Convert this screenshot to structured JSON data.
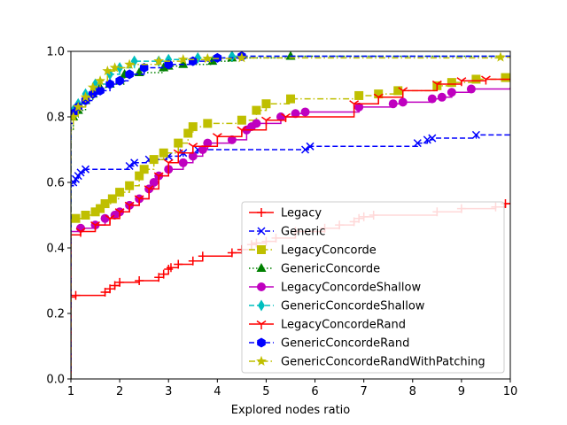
{
  "chart_data": {
    "type": "line",
    "title": "",
    "xlabel": "Explored nodes ratio",
    "ylabel": "",
    "xlim": [
      1,
      10
    ],
    "ylim": [
      0,
      1
    ],
    "xticks": [
      1,
      2,
      3,
      4,
      5,
      6,
      7,
      8,
      9,
      10
    ],
    "yticks": [
      0.0,
      0.2,
      0.4,
      0.6,
      0.8,
      1.0
    ],
    "xtick_labels": [
      "1",
      "2",
      "3",
      "4",
      "5",
      "6",
      "7",
      "8",
      "9",
      "10"
    ],
    "ytick_labels": [
      "0.0",
      "0.2",
      "0.4",
      "0.6",
      "0.8",
      "1.0"
    ],
    "legend_position": "lower-right",
    "series": [
      {
        "name": "Legacy",
        "color": "#ff0000",
        "dash": "solid",
        "marker": "plus",
        "start_y": 0.25,
        "points": [
          [
            1.1,
            0.255
          ],
          [
            1.7,
            0.265
          ],
          [
            1.8,
            0.275
          ],
          [
            1.9,
            0.285
          ],
          [
            2.0,
            0.295
          ],
          [
            2.4,
            0.3
          ],
          [
            2.8,
            0.31
          ],
          [
            2.9,
            0.32
          ],
          [
            3.0,
            0.335
          ],
          [
            3.05,
            0.34
          ],
          [
            3.2,
            0.35
          ],
          [
            3.5,
            0.36
          ],
          [
            3.7,
            0.375
          ],
          [
            4.3,
            0.385
          ],
          [
            4.5,
            0.395
          ],
          [
            4.7,
            0.41
          ],
          [
            4.8,
            0.415
          ],
          [
            5.0,
            0.42
          ],
          [
            5.2,
            0.43
          ],
          [
            5.6,
            0.45
          ],
          [
            6.2,
            0.46
          ],
          [
            6.5,
            0.47
          ],
          [
            6.8,
            0.48
          ],
          [
            6.9,
            0.49
          ],
          [
            7.0,
            0.495
          ],
          [
            7.2,
            0.5
          ],
          [
            8.5,
            0.51
          ],
          [
            9.0,
            0.52
          ],
          [
            9.7,
            0.525
          ],
          [
            9.9,
            0.535
          ],
          [
            10.0,
            0.535
          ]
        ]
      },
      {
        "name": "Generic",
        "color": "#0000ff",
        "dash": "dashed",
        "marker": "x",
        "start_y": 0.59,
        "points": [
          [
            1.05,
            0.6
          ],
          [
            1.1,
            0.61
          ],
          [
            1.15,
            0.62
          ],
          [
            1.2,
            0.63
          ],
          [
            1.3,
            0.64
          ],
          [
            2.2,
            0.65
          ],
          [
            2.3,
            0.66
          ],
          [
            2.6,
            0.67
          ],
          [
            3.0,
            0.68
          ],
          [
            3.3,
            0.69
          ],
          [
            3.6,
            0.7
          ],
          [
            5.8,
            0.7
          ],
          [
            5.9,
            0.71
          ],
          [
            8.1,
            0.72
          ],
          [
            8.3,
            0.73
          ],
          [
            8.4,
            0.735
          ],
          [
            9.3,
            0.745
          ],
          [
            10.0,
            0.75
          ]
        ]
      },
      {
        "name": "LegacyConcorde",
        "color": "#bfbf00",
        "dash": "dashdot",
        "marker": "square",
        "start_y": 0.48,
        "points": [
          [
            1.1,
            0.49
          ],
          [
            1.3,
            0.5
          ],
          [
            1.5,
            0.51
          ],
          [
            1.6,
            0.52
          ],
          [
            1.7,
            0.535
          ],
          [
            1.85,
            0.55
          ],
          [
            2.0,
            0.57
          ],
          [
            2.2,
            0.59
          ],
          [
            2.4,
            0.62
          ],
          [
            2.5,
            0.64
          ],
          [
            2.7,
            0.67
          ],
          [
            2.9,
            0.69
          ],
          [
            3.2,
            0.72
          ],
          [
            3.4,
            0.75
          ],
          [
            3.5,
            0.77
          ],
          [
            3.8,
            0.78
          ],
          [
            4.5,
            0.79
          ],
          [
            4.8,
            0.82
          ],
          [
            5.0,
            0.84
          ],
          [
            5.5,
            0.855
          ],
          [
            6.9,
            0.865
          ],
          [
            7.3,
            0.87
          ],
          [
            7.7,
            0.88
          ],
          [
            8.5,
            0.895
          ],
          [
            8.8,
            0.905
          ],
          [
            9.3,
            0.915
          ],
          [
            9.9,
            0.92
          ],
          [
            10.0,
            0.92
          ]
        ]
      },
      {
        "name": "GenericConcorde",
        "color": "#008000",
        "dash": "dotted",
        "marker": "triangle",
        "start_y": 0.76,
        "points": [
          [
            1.05,
            0.8
          ],
          [
            1.15,
            0.82
          ],
          [
            1.3,
            0.85
          ],
          [
            1.45,
            0.87
          ],
          [
            1.6,
            0.89
          ],
          [
            1.8,
            0.9
          ],
          [
            2.1,
            0.93
          ],
          [
            2.4,
            0.935
          ],
          [
            2.9,
            0.95
          ],
          [
            3.0,
            0.955
          ],
          [
            3.3,
            0.96
          ],
          [
            3.9,
            0.97
          ],
          [
            4.3,
            0.98
          ],
          [
            5.5,
            0.985
          ],
          [
            10.0,
            0.985
          ]
        ]
      },
      {
        "name": "LegacyConcordeShallow",
        "color": "#bf00bf",
        "dash": "solid",
        "marker": "circle",
        "start_y": 0.45,
        "points": [
          [
            1.2,
            0.46
          ],
          [
            1.5,
            0.47
          ],
          [
            1.7,
            0.49
          ],
          [
            1.9,
            0.5
          ],
          [
            2.0,
            0.51
          ],
          [
            2.2,
            0.53
          ],
          [
            2.4,
            0.55
          ],
          [
            2.6,
            0.58
          ],
          [
            2.7,
            0.6
          ],
          [
            2.8,
            0.62
          ],
          [
            3.0,
            0.64
          ],
          [
            3.3,
            0.66
          ],
          [
            3.5,
            0.68
          ],
          [
            3.7,
            0.7
          ],
          [
            3.8,
            0.72
          ],
          [
            4.3,
            0.73
          ],
          [
            4.6,
            0.76
          ],
          [
            4.7,
            0.77
          ],
          [
            4.8,
            0.78
          ],
          [
            5.3,
            0.8
          ],
          [
            5.6,
            0.81
          ],
          [
            5.8,
            0.815
          ],
          [
            6.9,
            0.83
          ],
          [
            7.6,
            0.84
          ],
          [
            7.8,
            0.845
          ],
          [
            8.4,
            0.855
          ],
          [
            8.6,
            0.86
          ],
          [
            8.8,
            0.875
          ],
          [
            9.2,
            0.885
          ],
          [
            10.0,
            0.89
          ]
        ]
      },
      {
        "name": "GenericConcordeShallow",
        "color": "#00bfbf",
        "dash": "dashed",
        "marker": "diamond",
        "start_y": 0.78,
        "points": [
          [
            1.05,
            0.82
          ],
          [
            1.15,
            0.84
          ],
          [
            1.3,
            0.87
          ],
          [
            1.5,
            0.9
          ],
          [
            1.8,
            0.93
          ],
          [
            2.0,
            0.95
          ],
          [
            2.3,
            0.97
          ],
          [
            2.8,
            0.97
          ],
          [
            3.0,
            0.975
          ],
          [
            3.6,
            0.98
          ],
          [
            4.3,
            0.985
          ],
          [
            10.0,
            0.985
          ]
        ]
      },
      {
        "name": "LegacyConcordeRand",
        "color": "#ff0000",
        "dash": "solid",
        "marker": "tri",
        "start_y": 0.44,
        "points": [
          [
            1.2,
            0.45
          ],
          [
            1.5,
            0.47
          ],
          [
            1.8,
            0.49
          ],
          [
            2.0,
            0.51
          ],
          [
            2.2,
            0.53
          ],
          [
            2.4,
            0.55
          ],
          [
            2.6,
            0.58
          ],
          [
            2.8,
            0.62
          ],
          [
            3.0,
            0.66
          ],
          [
            3.2,
            0.69
          ],
          [
            3.5,
            0.71
          ],
          [
            4.0,
            0.74
          ],
          [
            4.5,
            0.76
          ],
          [
            5.0,
            0.79
          ],
          [
            5.4,
            0.8
          ],
          [
            6.8,
            0.84
          ],
          [
            7.3,
            0.86
          ],
          [
            7.8,
            0.88
          ],
          [
            8.5,
            0.9
          ],
          [
            9.0,
            0.91
          ],
          [
            9.5,
            0.915
          ],
          [
            10.0,
            0.915
          ]
        ]
      },
      {
        "name": "GenericConcordeRand",
        "color": "#0000ff",
        "dash": "dashed",
        "marker": "hexagon",
        "start_y": 0.78,
        "points": [
          [
            1.05,
            0.81
          ],
          [
            1.15,
            0.83
          ],
          [
            1.3,
            0.85
          ],
          [
            1.45,
            0.87
          ],
          [
            1.6,
            0.88
          ],
          [
            1.8,
            0.9
          ],
          [
            2.0,
            0.91
          ],
          [
            2.2,
            0.93
          ],
          [
            2.5,
            0.95
          ],
          [
            3.0,
            0.96
          ],
          [
            3.5,
            0.97
          ],
          [
            4.0,
            0.98
          ],
          [
            4.5,
            0.985
          ],
          [
            10.0,
            0.985
          ]
        ]
      },
      {
        "name": "GenericConcordeRandWithPatching",
        "color": "#bfbf00",
        "dash": "dashdot",
        "marker": "star",
        "start_y": 0.76,
        "points": [
          [
            1.05,
            0.8
          ],
          [
            1.15,
            0.83
          ],
          [
            1.3,
            0.86
          ],
          [
            1.45,
            0.89
          ],
          [
            1.6,
            0.91
          ],
          [
            1.75,
            0.94
          ],
          [
            1.9,
            0.95
          ],
          [
            2.2,
            0.96
          ],
          [
            2.8,
            0.97
          ],
          [
            3.3,
            0.975
          ],
          [
            3.8,
            0.978
          ],
          [
            4.5,
            0.98
          ],
          [
            9.8,
            0.982
          ],
          [
            10.0,
            0.982
          ]
        ]
      }
    ]
  }
}
